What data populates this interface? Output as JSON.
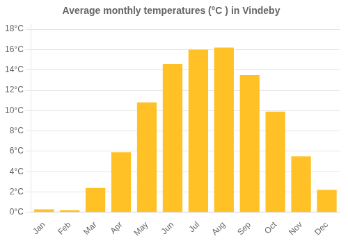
{
  "chart_data": {
    "type": "bar",
    "title": "Average monthly temperatures (°C ) in Vindeby",
    "categories": [
      "Jan",
      "Feb",
      "Mar",
      "Apr",
      "May",
      "Jun",
      "Jul",
      "Aug",
      "Sep",
      "Oct",
      "Nov",
      "Dec"
    ],
    "values": [
      0.3,
      0.2,
      2.4,
      5.9,
      10.8,
      14.6,
      16.0,
      16.2,
      13.5,
      9.9,
      5.5,
      2.2
    ],
    "color": "#FFC125",
    "ylim": [
      0,
      18.5
    ],
    "yticks": [
      {
        "value": 0,
        "label": "0°C"
      },
      {
        "value": 2,
        "label": "2°C"
      },
      {
        "value": 4,
        "label": "4°C"
      },
      {
        "value": 6,
        "label": "6°C"
      },
      {
        "value": 8,
        "label": "8°C"
      },
      {
        "value": 10,
        "label": "10°C"
      },
      {
        "value": 12,
        "label": "12°C"
      },
      {
        "value": 14,
        "label": "14°C"
      },
      {
        "value": 16,
        "label": "16°C"
      },
      {
        "value": 18,
        "label": "18°C"
      }
    ],
    "grid": true
  }
}
